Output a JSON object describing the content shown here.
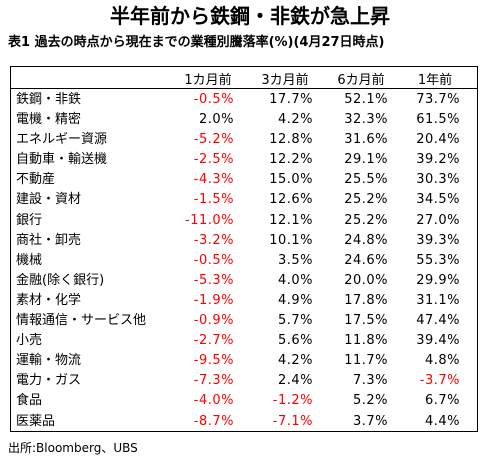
{
  "title": "半年前から鉄鋼・非鉄が急上昇",
  "subtitle": "表1  過去の時点から現在までの業種別騰落率(%)(4月27日時点)",
  "columns": [
    "1カ月前",
    "3カ月前",
    "6カ月前",
    "1年前"
  ],
  "rows": [
    {
      "label": "鉄鋼・非鉄",
      "values": [
        "-0.5%",
        "17.7%",
        "52.1%",
        "73.7%"
      ]
    },
    {
      "label": "電機・精密",
      "values": [
        "2.0%",
        "4.2%",
        "32.3%",
        "61.5%"
      ]
    },
    {
      "label": "エネルギー資源",
      "values": [
        "-5.2%",
        "12.8%",
        "31.6%",
        "20.4%"
      ]
    },
    {
      "label": "自動車・輸送機",
      "values": [
        "-2.5%",
        "12.2%",
        "29.1%",
        "39.2%"
      ]
    },
    {
      "label": "不動産",
      "values": [
        "-4.3%",
        "15.0%",
        "25.5%",
        "30.3%"
      ]
    },
    {
      "label": "建設・資材",
      "values": [
        "-1.5%",
        "12.6%",
        "25.2%",
        "34.5%"
      ]
    },
    {
      "label": "銀行",
      "values": [
        "-11.0%",
        "12.1%",
        "25.2%",
        "27.0%"
      ]
    },
    {
      "label": "商社・卸売",
      "values": [
        "-3.2%",
        "10.1%",
        "24.8%",
        "39.3%"
      ]
    },
    {
      "label": "機械",
      "values": [
        "-0.5%",
        "3.5%",
        "24.6%",
        "55.3%"
      ]
    },
    {
      "label": "金融(除く銀行)",
      "values": [
        "-5.3%",
        "4.0%",
        "20.0%",
        "29.9%"
      ]
    },
    {
      "label": "素材・化学",
      "values": [
        "-1.9%",
        "4.9%",
        "17.8%",
        "31.1%"
      ]
    },
    {
      "label": "情報通信・サービス他",
      "values": [
        "-0.9%",
        "5.7%",
        "17.5%",
        "47.4%"
      ]
    },
    {
      "label": "小売",
      "values": [
        "-2.7%",
        "5.6%",
        "11.8%",
        "39.4%"
      ]
    },
    {
      "label": "運輸・物流",
      "values": [
        "-9.5%",
        "4.2%",
        "11.7%",
        "4.8%"
      ]
    },
    {
      "label": "電力・ガス",
      "values": [
        "-7.3%",
        "2.4%",
        "7.3%",
        "-3.7%"
      ]
    },
    {
      "label": "食品",
      "values": [
        "-4.0%",
        "-1.2%",
        "5.2%",
        "6.7%"
      ]
    },
    {
      "label": "医薬品",
      "values": [
        "-8.7%",
        "-7.1%",
        "3.7%",
        "4.4%"
      ]
    }
  ],
  "source": "出所:Bloomberg、UBS",
  "colors": {
    "negative": "#ff0000",
    "text": "#000000"
  }
}
